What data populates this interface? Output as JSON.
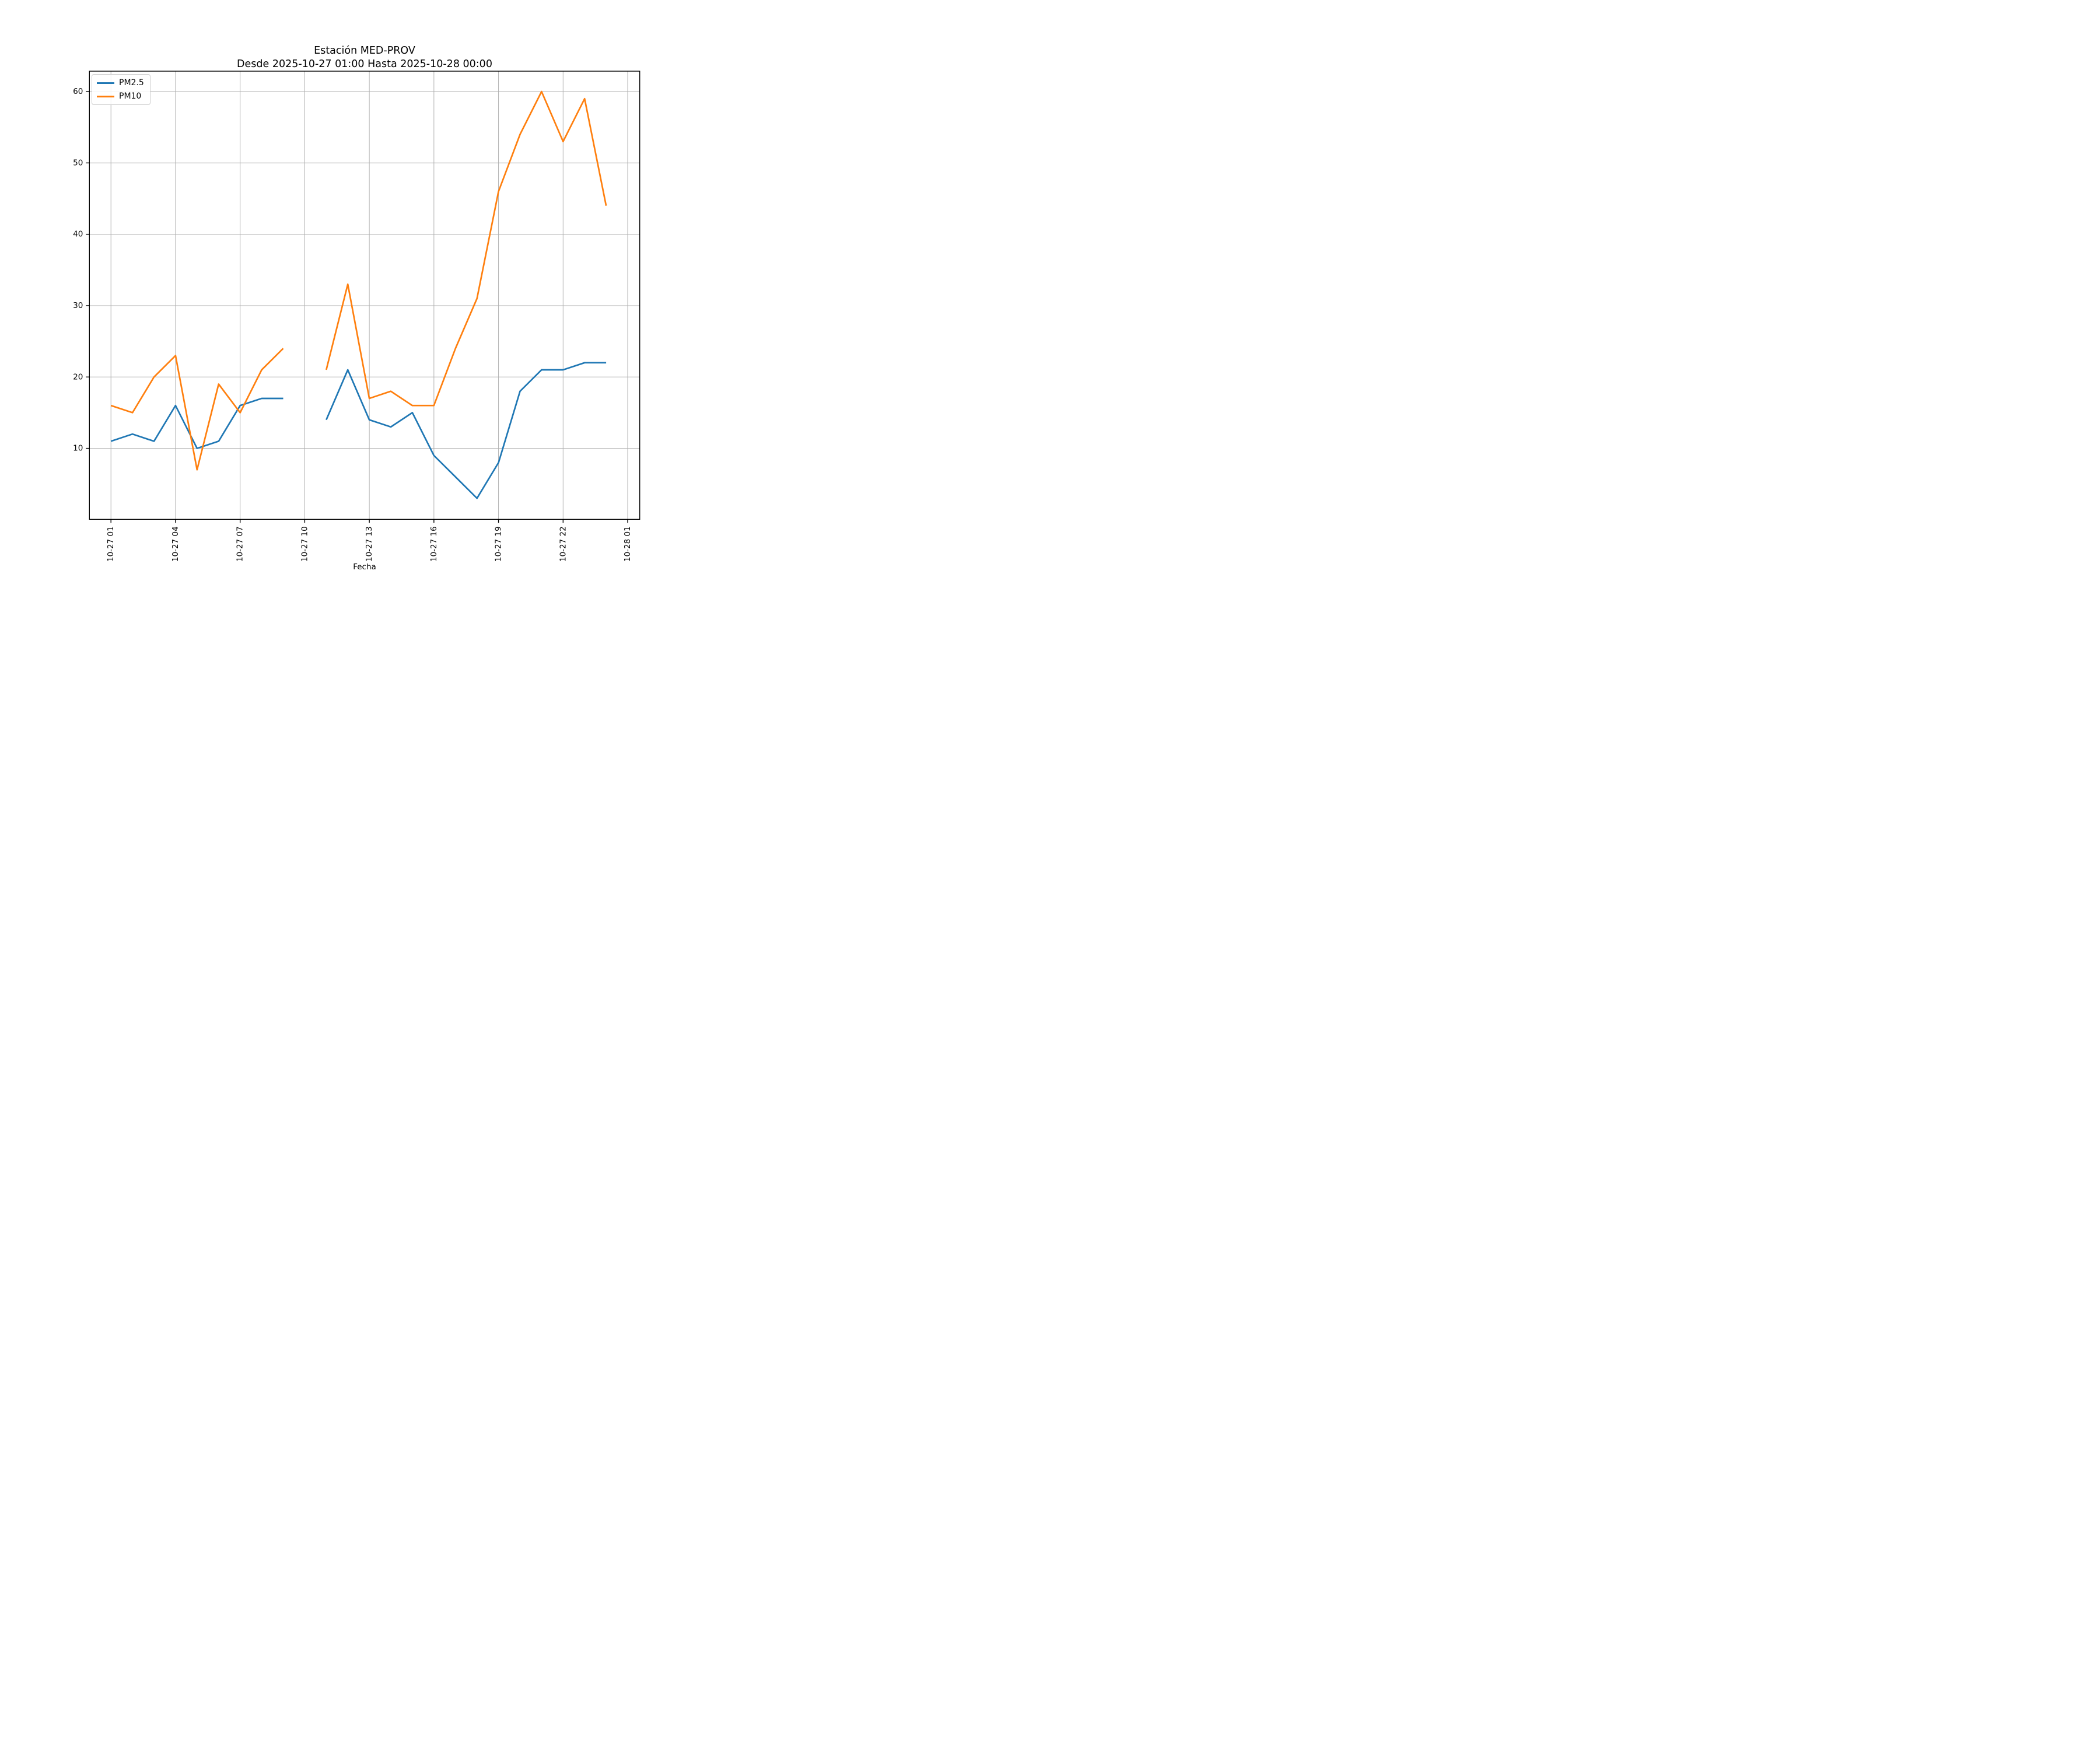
{
  "chart_data": {
    "type": "line",
    "title": "Estación MED-PROV",
    "subtitle": "Desde 2025-10-27 01:00 Hasta 2025-10-28 00:00",
    "xlabel": "Fecha",
    "ylabel": "",
    "x_hours": [
      1,
      2,
      3,
      4,
      5,
      6,
      7,
      8,
      9,
      10,
      11,
      12,
      13,
      14,
      15,
      16,
      17,
      18,
      19,
      20,
      21,
      22,
      23,
      24
    ],
    "series": [
      {
        "name": "PM2.5",
        "color": "#1f77b4",
        "values": [
          11,
          12,
          11,
          16,
          10,
          11,
          16,
          17,
          17,
          null,
          14,
          21,
          14,
          13,
          15,
          9,
          6,
          3,
          8,
          18,
          21,
          21,
          22,
          22
        ]
      },
      {
        "name": "PM10",
        "color": "#ff7f0e",
        "values": [
          16,
          15,
          20,
          23,
          7,
          19,
          15,
          21,
          24,
          null,
          21,
          33,
          17,
          18,
          16,
          16,
          24,
          31,
          46,
          54,
          60,
          53,
          59,
          44
        ]
      }
    ],
    "x_ticks": {
      "hours": [
        1,
        4,
        7,
        10,
        13,
        16,
        19,
        22,
        25
      ],
      "labels": [
        "10-27 01",
        "10-27 04",
        "10-27 07",
        "10-27 10",
        "10-27 13",
        "10-27 16",
        "10-27 19",
        "10-27 22",
        "10-28 01"
      ]
    },
    "y_ticks": {
      "values": [
        10,
        20,
        30,
        40,
        50,
        60
      ],
      "labels": [
        "10",
        "20",
        "30",
        "40",
        "50",
        "60"
      ]
    },
    "xlim_hours": [
      0,
      25.56
    ],
    "ylim": [
      0.05,
      62.86
    ],
    "grid": true,
    "legend_position": "upper left",
    "grid_color": "#b0b0b0",
    "spine_color": "#000000",
    "background_color": "#ffffff"
  }
}
